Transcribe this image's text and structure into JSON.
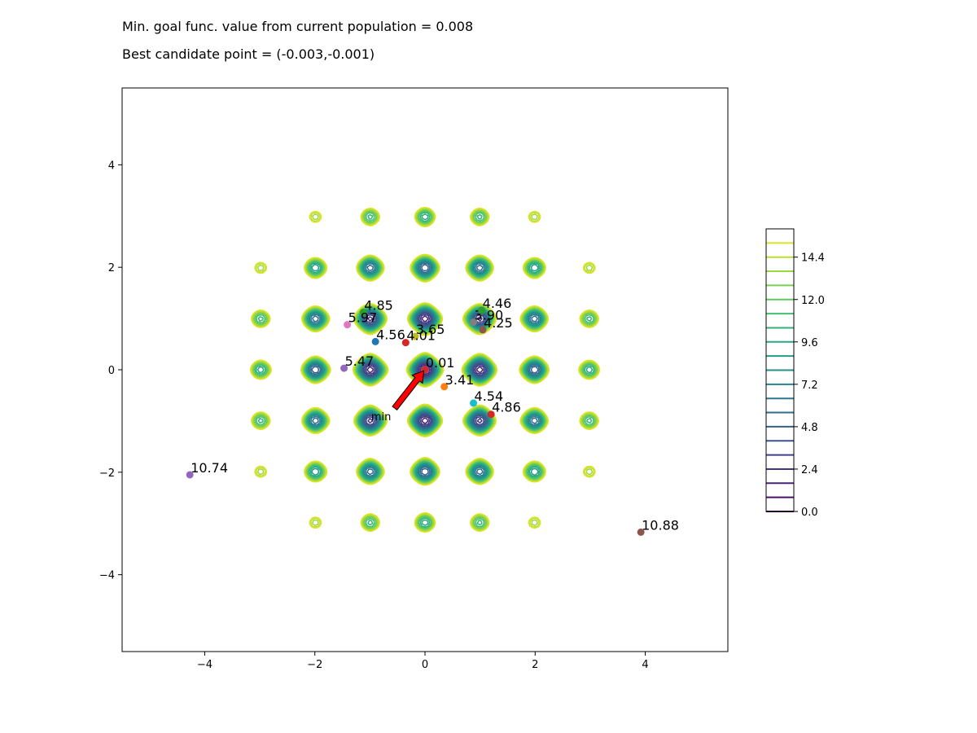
{
  "header": {
    "line1": "Min. goal func. value from current population = 0.008",
    "line2": "Best candidate point = (-0.003,-0.001)"
  },
  "chart_data": {
    "type": "contour",
    "function": "rastrigin (2D)",
    "xlim": [
      -5.5,
      5.5
    ],
    "ylim": [
      -5.5,
      5.5
    ],
    "xticks": [
      -4,
      -2,
      0,
      2,
      4
    ],
    "yticks": [
      -4,
      -2,
      0,
      2,
      4
    ],
    "xtick_labels": [
      "−4",
      "−2",
      "0",
      "2",
      "4"
    ],
    "ytick_labels": [
      "−4",
      "−2",
      "0",
      "2",
      "4"
    ],
    "contour_levels": [
      0.0,
      0.8,
      1.6,
      2.4,
      3.2,
      4.0,
      4.8,
      5.6,
      6.4,
      7.2,
      8.0,
      8.8,
      9.6,
      10.4,
      11.2,
      12.0,
      12.8,
      13.6,
      14.4,
      15.2
    ],
    "colormap": "viridis",
    "colorbar": {
      "ticks": [
        0.0,
        2.4,
        4.8,
        7.2,
        9.6,
        12.0,
        14.4
      ],
      "tick_labels": [
        "0.0",
        "2.4",
        "4.8",
        "7.2",
        "9.6",
        "12.0",
        "14.4"
      ],
      "range": [
        0.0,
        16.0
      ]
    },
    "points": [
      {
        "x": -0.003,
        "y": -0.001,
        "label": "0.01",
        "color": "#d62728"
      },
      {
        "x": 0.35,
        "y": -0.33,
        "label": "3.41",
        "color": "#ff7f0e"
      },
      {
        "x": -0.18,
        "y": 0.65,
        "label": "3.65",
        "color": "#bcbd22"
      },
      {
        "x": 0.88,
        "y": 0.93,
        "label": "3.90",
        "color": "#7f7f7f"
      },
      {
        "x": -0.35,
        "y": 0.53,
        "label": "4.01",
        "color": "#d62728"
      },
      {
        "x": 1.05,
        "y": 0.78,
        "label": "4.25",
        "color": "#8c564b"
      },
      {
        "x": 1.03,
        "y": 1.16,
        "label": "4.46",
        "color": "#2ca02c"
      },
      {
        "x": 0.88,
        "y": -0.65,
        "label": "4.54",
        "color": "#17becf"
      },
      {
        "x": -0.9,
        "y": 0.55,
        "label": "4.56",
        "color": "#1f77b4"
      },
      {
        "x": -1.12,
        "y": 1.12,
        "label": "4.85",
        "color": "#2ca02c"
      },
      {
        "x": 1.2,
        "y": -0.87,
        "label": "4.86",
        "color": "#d62728"
      },
      {
        "x": -1.47,
        "y": 0.03,
        "label": "5.47",
        "color": "#9467bd"
      },
      {
        "x": -1.41,
        "y": 0.88,
        "label": "5.97",
        "color": "#e377c2"
      },
      {
        "x": -4.27,
        "y": -2.05,
        "label": "10.74",
        "color": "#9467bd"
      },
      {
        "x": 3.92,
        "y": -3.17,
        "label": "10.88",
        "color": "#8c564b"
      }
    ],
    "annotation": {
      "text": "min",
      "arrow_from": [
        -0.55,
        -0.75
      ],
      "arrow_to": [
        -0.02,
        -0.02
      ],
      "arrow_color": "#ff0000"
    }
  }
}
